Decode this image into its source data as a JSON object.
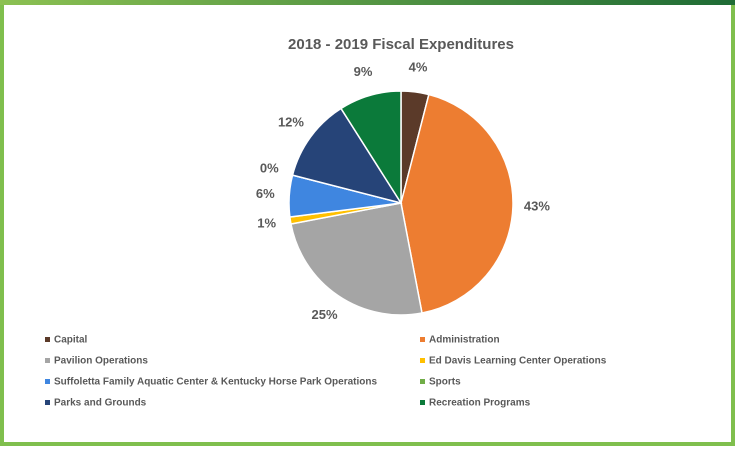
{
  "chart_data": {
    "type": "pie",
    "title": "2018 - 2019 Fiscal Expenditures",
    "categories": [
      "Capital",
      "Administration",
      "Pavilion Operations",
      "Ed Davis Learning Center Operations",
      "Suffoletta Family Aquatic Center & Kentucky Horse Park Operations",
      "Sports",
      "Parks and Grounds",
      "Recreation Programs"
    ],
    "values": [
      4,
      43,
      25,
      1,
      6,
      0,
      12,
      9
    ],
    "value_labels": [
      "4%",
      "43%",
      "25%",
      "1%",
      "6%",
      "0%",
      "12%",
      "9%"
    ],
    "colors": [
      "#5b3a29",
      "#ed7d31",
      "#a5a5a5",
      "#ffc000",
      "#3f86e0",
      "#70ad47",
      "#264478",
      "#0b7a3a"
    ]
  }
}
